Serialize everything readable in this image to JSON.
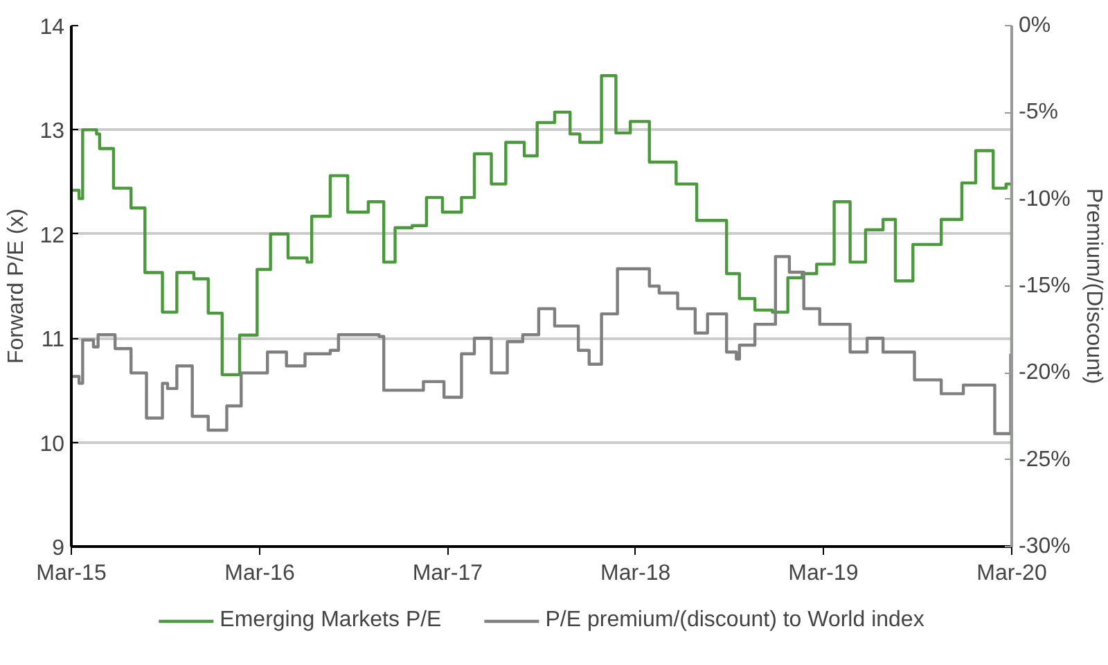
{
  "chart_data": {
    "type": "step",
    "ylabel": "Forward P/E (x)",
    "y2label": "Premium/(Discount)",
    "xlim": [
      "2015-03-01",
      "2020-03-01"
    ],
    "xticks": [
      {
        "value": "2015-03-01",
        "label": "Mar-15"
      },
      {
        "value": "2016-03-01",
        "label": "Mar-16"
      },
      {
        "value": "2017-03-01",
        "label": "Mar-17"
      },
      {
        "value": "2018-03-01",
        "label": "Mar-18"
      },
      {
        "value": "2019-03-01",
        "label": "Mar-19"
      },
      {
        "value": "2020-03-01",
        "label": "Mar-20"
      }
    ],
    "ylim": [
      9,
      14
    ],
    "yticks": [
      9,
      10,
      11,
      12,
      13,
      14
    ],
    "y2lim": [
      -30,
      0
    ],
    "y2ticks": [
      {
        "value": -30,
        "label": "-30%"
      },
      {
        "value": -25,
        "label": "-25%"
      },
      {
        "value": -20,
        "label": "-20%"
      },
      {
        "value": -15,
        "label": "-15%"
      },
      {
        "value": -10,
        "label": "-10%"
      },
      {
        "value": -5,
        "label": "-5%"
      },
      {
        "value": 0,
        "label": "0%"
      }
    ],
    "grid": "y",
    "legend": "bottom",
    "series": [
      {
        "name": "Emerging Markets P/E",
        "color": "#4a9a3c",
        "x": [
          "2015-03-01",
          "2015-03-16",
          "2015-03-23",
          "2015-04-19",
          "2015-04-25",
          "2015-05-22",
          "2015-06-25",
          "2015-07-22",
          "2015-08-25",
          "2015-09-22",
          "2015-10-25",
          "2015-11-22",
          "2015-12-19",
          "2016-01-22",
          "2016-02-25",
          "2016-03-22",
          "2016-04-25",
          "2016-06-01",
          "2016-06-10",
          "2016-07-16",
          "2016-08-19",
          "2016-09-28",
          "2016-10-28",
          "2016-11-19",
          "2016-12-22",
          "2017-01-19",
          "2017-02-19",
          "2017-03-28",
          "2017-04-22",
          "2017-05-25",
          "2017-06-22",
          "2017-07-28",
          "2017-08-22",
          "2017-09-25",
          "2017-10-25",
          "2017-11-13",
          "2017-12-25",
          "2018-01-22",
          "2018-02-19",
          "2018-03-28",
          "2018-05-19",
          "2018-06-28",
          "2018-08-25",
          "2018-09-19",
          "2018-10-19",
          "2018-11-22",
          "2018-12-22",
          "2019-01-19",
          "2019-02-16",
          "2019-03-22",
          "2019-04-22",
          "2019-05-22",
          "2019-06-25",
          "2019-07-19",
          "2019-08-22",
          "2019-10-16",
          "2019-11-25",
          "2019-12-22",
          "2020-01-25",
          "2020-02-19",
          "2020-03-01"
        ],
        "values": [
          12.42,
          12.34,
          13.0,
          12.96,
          12.82,
          12.44,
          12.25,
          11.63,
          11.25,
          11.63,
          11.57,
          11.24,
          10.65,
          11.03,
          11.66,
          12.0,
          11.77,
          11.73,
          12.17,
          12.56,
          12.21,
          12.31,
          11.73,
          12.06,
          12.08,
          12.35,
          12.21,
          12.35,
          12.77,
          12.48,
          12.88,
          12.75,
          13.07,
          13.17,
          12.96,
          12.88,
          13.52,
          12.97,
          13.08,
          12.69,
          12.48,
          12.13,
          11.62,
          11.38,
          11.27,
          11.25,
          11.58,
          11.62,
          11.71,
          12.31,
          11.73,
          12.04,
          12.14,
          11.55,
          11.9,
          12.14,
          12.49,
          12.8,
          12.44,
          12.48,
          9.77
        ]
      },
      {
        "name": "P/E premium/(discount) to World index",
        "color": "#7f7f7f",
        "axis": "y2",
        "x": [
          "2015-03-01",
          "2015-03-16",
          "2015-03-23",
          "2015-04-13",
          "2015-04-22",
          "2015-05-25",
          "2015-06-25",
          "2015-07-25",
          "2015-08-25",
          "2015-09-04",
          "2015-09-22",
          "2015-10-22",
          "2015-11-22",
          "2015-12-28",
          "2016-01-25",
          "2016-03-16",
          "2016-04-22",
          "2016-05-28",
          "2016-07-16",
          "2016-08-01",
          "2016-10-19",
          "2016-10-28",
          "2017-01-13",
          "2017-02-22",
          "2017-03-28",
          "2017-04-22",
          "2017-05-25",
          "2017-06-25",
          "2017-07-25",
          "2017-08-25",
          "2017-09-25",
          "2017-11-10",
          "2017-12-01",
          "2017-12-25",
          "2018-01-25",
          "2018-03-28",
          "2018-04-16",
          "2018-05-22",
          "2018-06-25",
          "2018-07-19",
          "2018-08-25",
          "2018-09-13",
          "2018-09-19",
          "2018-10-19",
          "2018-11-28",
          "2018-12-25",
          "2019-01-22",
          "2019-02-22",
          "2019-04-22",
          "2019-05-25",
          "2019-06-25",
          "2019-08-25",
          "2019-10-16",
          "2019-11-28",
          "2020-01-28",
          "2020-02-28"
        ],
        "values": [
          -20.2,
          -20.6,
          -18.1,
          -18.5,
          -17.8,
          -18.6,
          -20.0,
          -22.6,
          -20.6,
          -20.9,
          -19.6,
          -22.5,
          -23.3,
          -21.9,
          -20.0,
          -18.8,
          -19.6,
          -18.9,
          -18.7,
          -17.8,
          -17.9,
          -21.0,
          -20.5,
          -21.4,
          -18.9,
          -18.0,
          -20.0,
          -18.2,
          -17.8,
          -16.3,
          -17.3,
          -18.7,
          -19.5,
          -16.6,
          -14.0,
          -15.0,
          -15.4,
          -16.3,
          -17.7,
          -16.6,
          -18.8,
          -19.2,
          -18.4,
          -17.2,
          -13.3,
          -14.2,
          -16.3,
          -17.2,
          -18.8,
          -18.0,
          -18.8,
          -20.4,
          -21.2,
          -20.7,
          -23.5,
          -18.9
        ]
      }
    ]
  }
}
